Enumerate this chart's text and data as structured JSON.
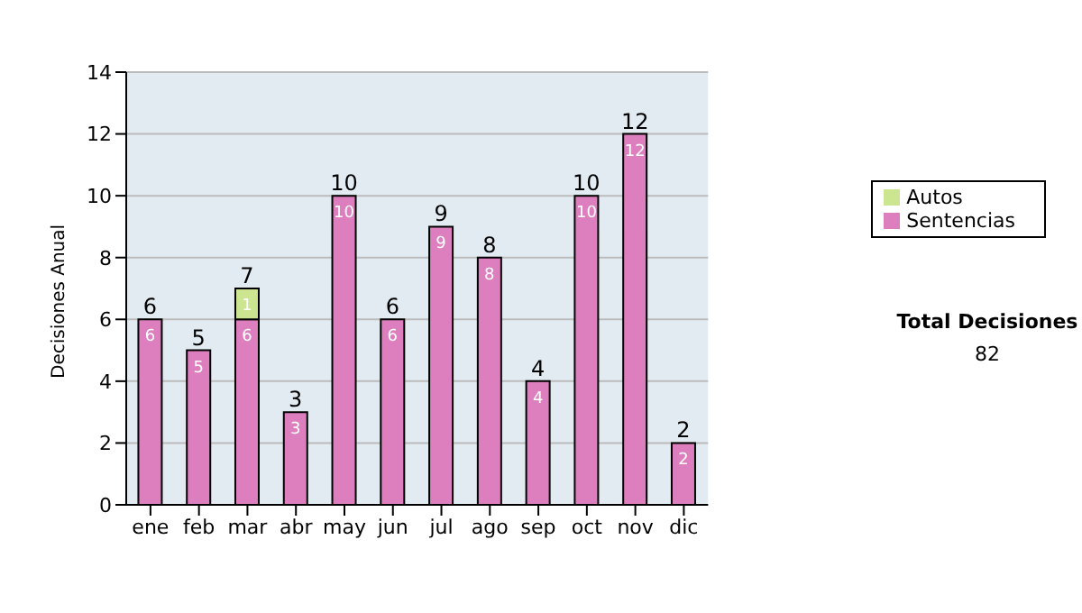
{
  "chart_data": {
    "type": "bar",
    "stacked": true,
    "ylabel": "Decisiones Anual",
    "categories": [
      "ene",
      "feb",
      "mar",
      "abr",
      "may",
      "jun",
      "jul",
      "ago",
      "sep",
      "oct",
      "nov",
      "dic"
    ],
    "series": [
      {
        "name": "Sentencias",
        "color": "#dd7fbf",
        "values": [
          6,
          5,
          6,
          3,
          10,
          6,
          9,
          8,
          4,
          10,
          12,
          2
        ]
      },
      {
        "name": "Autos",
        "color": "#cce590",
        "values": [
          null,
          null,
          1,
          null,
          null,
          null,
          null,
          null,
          null,
          null,
          null,
          null
        ]
      }
    ],
    "totals": [
      "6",
      "5",
      "7",
      "3",
      "10",
      "6",
      "9",
      "8",
      "4",
      "10",
      "12",
      "2"
    ],
    "data_labels": true,
    "ylim": [
      0,
      14
    ],
    "yticks": [
      0,
      2,
      4,
      6,
      8,
      10,
      12,
      14
    ],
    "grid": "y",
    "legend": "right",
    "annotations": [
      "Total Decisiones",
      "82"
    ]
  }
}
